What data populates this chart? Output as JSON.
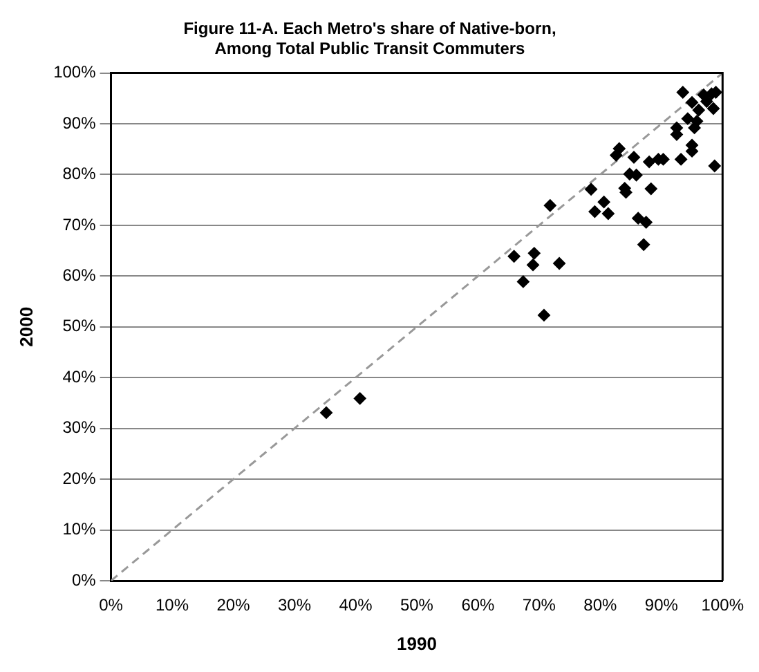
{
  "chart_data": {
    "type": "scatter",
    "title": "Figure 11-A. Each Metro's share of Native-born,\nAmong Total Public Transit Commuters",
    "xlabel": "1990",
    "ylabel": "2000",
    "series": [
      {
        "type": "scatter",
        "color": "#000000",
        "marker": "diamond",
        "x": [
          93.5,
          95.0,
          96.9,
          98.2,
          98.9,
          98.5,
          97.4,
          96.1,
          94.3,
          95.8,
          95.4,
          92.5,
          92.5,
          95.0,
          95.0,
          93.2,
          98.7,
          83.1,
          82.6,
          85.5,
          88.0,
          89.5,
          90.3,
          84.8,
          85.9,
          78.5,
          84.0,
          84.2,
          88.3,
          71.8,
          80.6,
          79.1,
          81.3,
          86.2,
          87.5,
          87.1,
          65.9,
          69.2,
          69.0,
          73.3,
          67.4,
          70.8,
          35.2,
          40.7
        ],
        "values": [
          96.2,
          94.2,
          95.7,
          95.9,
          96.2,
          93.0,
          94.4,
          92.7,
          91.0,
          90.5,
          89.2,
          89.2,
          87.9,
          85.8,
          84.6,
          83.0,
          81.7,
          85.1,
          83.8,
          83.4,
          82.5,
          83.0,
          83.0,
          80.1,
          79.9,
          77.1,
          77.3,
          76.5,
          77.2,
          73.9,
          74.6,
          72.7,
          72.3,
          71.4,
          70.6,
          66.2,
          63.9,
          64.5,
          62.2,
          62.5,
          58.9,
          52.3,
          33.1,
          35.9
        ]
      },
      {
        "type": "line",
        "color": "#999999",
        "line_style": "dashed",
        "marker": "none",
        "x": [
          0,
          100
        ],
        "values": [
          0,
          100
        ]
      }
    ],
    "xlim": [
      0,
      100
    ],
    "ylim": [
      0,
      100
    ],
    "xticks": [
      {
        "value": 0,
        "label": "0%"
      },
      {
        "value": 10,
        "label": "10%"
      },
      {
        "value": 20,
        "label": "20%"
      },
      {
        "value": 30,
        "label": "30%"
      },
      {
        "value": 40,
        "label": "40%"
      },
      {
        "value": 50,
        "label": "50%"
      },
      {
        "value": 60,
        "label": "60%"
      },
      {
        "value": 70,
        "label": "70%"
      },
      {
        "value": 80,
        "label": "80%"
      },
      {
        "value": 90,
        "label": "90%"
      },
      {
        "value": 100,
        "label": "100%"
      }
    ],
    "yticks": [
      {
        "value": 0,
        "label": "0%"
      },
      {
        "value": 10,
        "label": "10%"
      },
      {
        "value": 20,
        "label": "20%"
      },
      {
        "value": 30,
        "label": "30%"
      },
      {
        "value": 40,
        "label": "40%"
      },
      {
        "value": 50,
        "label": "50%"
      },
      {
        "value": 60,
        "label": "60%"
      },
      {
        "value": 70,
        "label": "70%"
      },
      {
        "value": 80,
        "label": "80%"
      },
      {
        "value": 90,
        "label": "90%"
      },
      {
        "value": 100,
        "label": "100%"
      }
    ],
    "grid": "y",
    "legend": false
  }
}
